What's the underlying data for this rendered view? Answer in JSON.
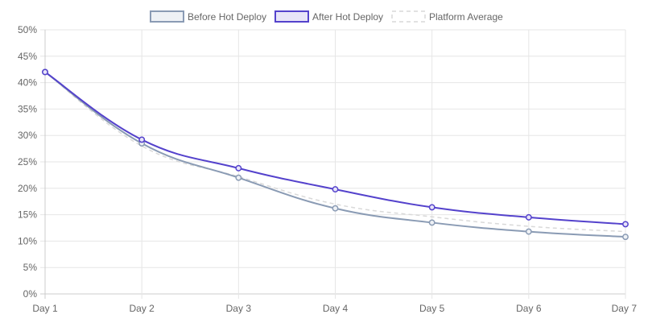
{
  "chart_data": {
    "type": "line",
    "categories": [
      "Day 1",
      "Day 2",
      "Day 3",
      "Day 4",
      "Day 5",
      "Day 6",
      "Day 7"
    ],
    "y_ticks": [
      "0%",
      "5%",
      "10%",
      "15%",
      "20%",
      "25%",
      "30%",
      "35%",
      "40%",
      "45%",
      "50%"
    ],
    "ylim": [
      0,
      50
    ],
    "grid": true,
    "legend_position": "top-center",
    "series": [
      {
        "name": "Before Hot Deploy",
        "values": [
          42,
          28.5,
          22,
          16.2,
          13.5,
          11.8,
          10.8
        ],
        "color": "#8a9bb4",
        "fill": "#eef1f5",
        "style": "solid",
        "markers": true
      },
      {
        "name": "After Hot Deploy",
        "values": [
          42,
          29.2,
          23.8,
          19.8,
          16.4,
          14.5,
          13.2
        ],
        "color": "#5442cc",
        "fill": "#e7e4f8",
        "style": "solid",
        "markers": true
      },
      {
        "name": "Platform Average",
        "values": [
          42,
          28,
          22.2,
          17,
          14.6,
          12.8,
          11.8
        ],
        "color": "#d9d9d9",
        "fill": "#ffffff",
        "style": "dashed",
        "markers": false
      }
    ]
  }
}
